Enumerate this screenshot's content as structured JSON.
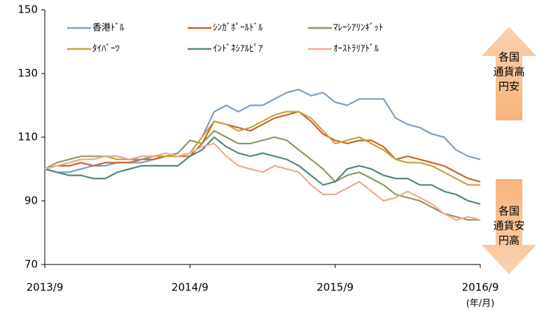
{
  "chart_data": {
    "type": "line",
    "categories": [
      "2013/9",
      null,
      null,
      null,
      null,
      null,
      null,
      null,
      null,
      null,
      null,
      null,
      "2014/9",
      null,
      null,
      null,
      null,
      null,
      null,
      null,
      null,
      null,
      null,
      null,
      "2015/9",
      null,
      null,
      null,
      null,
      null,
      null,
      null,
      null,
      null,
      null,
      null,
      "2016/9"
    ],
    "ylim": [
      70,
      150
    ],
    "yticks": [
      70,
      90,
      110,
      130,
      150
    ],
    "x_unit_label": "(年/月)",
    "annotations": [
      {
        "lines": [
          "各国",
          "通貨高",
          "円安"
        ],
        "direction": "up"
      },
      {
        "lines": [
          "各国",
          "通貨安",
          "円高"
        ],
        "direction": "down"
      }
    ],
    "series": [
      {
        "name": "香港ﾄﾞﾙ",
        "color": "#7f9fc0",
        "values": [
          100,
          99,
          99,
          100,
          101,
          101,
          102,
          102,
          102,
          103,
          104,
          104,
          105,
          110,
          118,
          120,
          118,
          120,
          120,
          122,
          124,
          125,
          123,
          124,
          121,
          120,
          122,
          122,
          122,
          116,
          114,
          113,
          111,
          110,
          106,
          104,
          103
        ]
      },
      {
        "name": "ｼﾝｶﾞﾎﾟｰﾙﾄﾞﾙ",
        "color": "#c8642a",
        "values": [
          100,
          101,
          101,
          102,
          101,
          102,
          102,
          102,
          103,
          103,
          104,
          104,
          104,
          108,
          115,
          114,
          113,
          112,
          114,
          116,
          117,
          118,
          115,
          111,
          109,
          108,
          109,
          109,
          107,
          103,
          104,
          103,
          102,
          101,
          99,
          97,
          96
        ]
      },
      {
        "name": "ﾏﾚｰｼｱﾘﾝｷﾞｯﾄ",
        "color": "#8c9a62",
        "values": [
          100,
          102,
          103,
          104,
          104,
          104,
          104,
          103,
          103,
          104,
          104,
          105,
          109,
          108,
          112,
          110,
          108,
          108,
          109,
          110,
          109,
          106,
          103,
          100,
          96,
          98,
          99,
          97,
          95,
          92,
          91,
          90,
          88,
          86,
          85,
          84,
          84
        ]
      },
      {
        "name": "ﾀｲﾊﾞｰﾂ",
        "color": "#c9a040",
        "values": [
          100,
          101,
          102,
          103,
          103,
          104,
          103,
          103,
          104,
          104,
          104,
          104,
          105,
          110,
          115,
          114,
          112,
          113,
          115,
          117,
          118,
          118,
          116,
          112,
          108,
          109,
          110,
          108,
          106,
          103,
          102,
          102,
          101,
          99,
          97,
          95,
          95
        ]
      },
      {
        "name": "ｲﾝﾄﾞﾈｼｱﾙﾋﾟｱ",
        "color": "#4e8a78",
        "values": [
          100,
          99,
          98,
          98,
          97,
          97,
          99,
          100,
          101,
          101,
          101,
          101,
          104,
          106,
          110,
          107,
          105,
          104,
          105,
          104,
          103,
          101,
          98,
          95,
          96,
          100,
          101,
          100,
          98,
          97,
          97,
          95,
          95,
          93,
          92,
          90,
          89
        ]
      },
      {
        "name": "ｵｰｽﾄﾗﾘｱﾄﾞﾙ",
        "color": "#f2aa90",
        "values": [
          100,
          101,
          102,
          103,
          103,
          104,
          104,
          103,
          104,
          104,
          105,
          104,
          105,
          107,
          108,
          104,
          101,
          100,
          99,
          101,
          100,
          99,
          95,
          92,
          92,
          94,
          96,
          93,
          90,
          91,
          93,
          91,
          89,
          86,
          84,
          85,
          84
        ]
      }
    ]
  }
}
